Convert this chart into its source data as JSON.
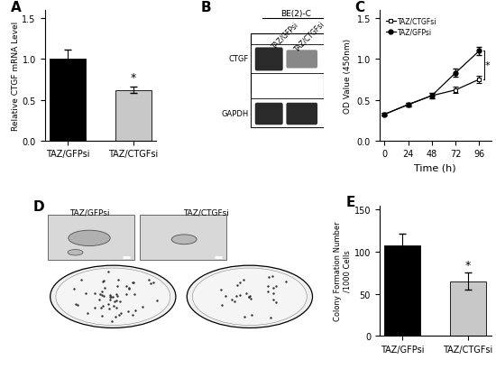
{
  "panel_A": {
    "categories": [
      "TAZ/GFPsi",
      "TAZ/CTGFsi"
    ],
    "values": [
      1.0,
      0.62
    ],
    "errors": [
      0.12,
      0.04
    ],
    "bar_colors": [
      "#000000",
      "#c8c8c8"
    ],
    "ylabel": "Relative CTGF mRNA Level",
    "ylim": [
      0,
      1.6
    ],
    "yticks": [
      0,
      0.5,
      1.0,
      1.5
    ],
    "star_x": 1,
    "star_y": 0.67,
    "label": "A"
  },
  "panel_C": {
    "time": [
      0,
      24,
      48,
      72,
      96
    ],
    "ctgfsi": [
      0.32,
      0.44,
      0.55,
      0.62,
      0.75
    ],
    "ctgfsi_err": [
      0.015,
      0.025,
      0.03,
      0.04,
      0.04
    ],
    "gfpsi": [
      0.32,
      0.44,
      0.55,
      0.83,
      1.1
    ],
    "gfpsi_err": [
      0.015,
      0.025,
      0.03,
      0.05,
      0.05
    ],
    "ylabel": "OD Value (450nm)",
    "xlabel": "Time (h)",
    "ylim": [
      0,
      1.6
    ],
    "yticks": [
      0,
      0.5,
      1.0,
      1.5
    ],
    "xticks": [
      0,
      24,
      48,
      72,
      96
    ],
    "label": "C",
    "legend_ctgfsi": "TAZ/CTGFsi",
    "legend_gfpsi": "TAZ/GFPsi"
  },
  "panel_B": {
    "label": "B",
    "title": "BE(2)-C"
  },
  "panel_D": {
    "label": "D",
    "categories": [
      "TAZ/GFPsi",
      "TAZ/CTGFsi"
    ]
  },
  "panel_E": {
    "categories": [
      "TAZ/GFPsi",
      "TAZ/CTGFsi"
    ],
    "values": [
      107,
      65
    ],
    "errors": [
      15,
      10
    ],
    "bar_colors": [
      "#000000",
      "#c8c8c8"
    ],
    "ylabel": "Colony Formation Number\n/1000 Cells",
    "ylim": [
      0,
      155
    ],
    "yticks": [
      0,
      50,
      100,
      150
    ],
    "star_x": 1,
    "star_y": 76,
    "label": "E"
  },
  "background_color": "#ffffff",
  "tick_fontsize": 7,
  "label_fontsize": 8,
  "panel_label_fontsize": 11
}
